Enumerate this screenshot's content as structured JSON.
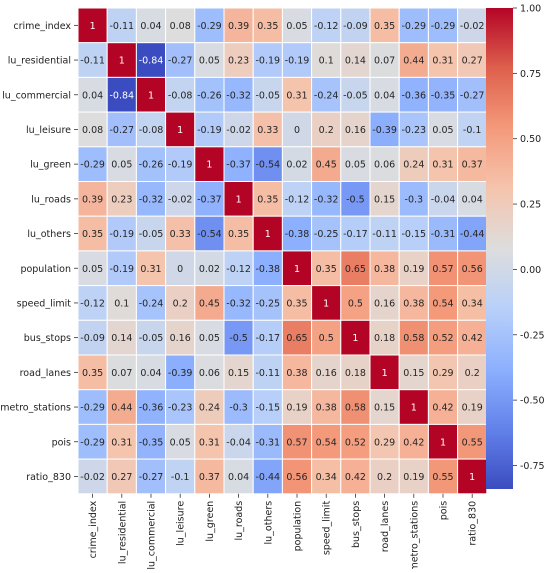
{
  "chart_data": {
    "type": "heatmap",
    "title": "",
    "xlabel": "",
    "ylabel": "",
    "labels": [
      "crime_index",
      "lu_residential",
      "lu_commercial",
      "lu_leisure",
      "lu_green",
      "lu_roads",
      "lu_others",
      "population",
      "speed_limit",
      "bus_stops",
      "road_lanes",
      "metro_stations",
      "pois",
      "ratio_830"
    ],
    "matrix": [
      [
        1,
        -0.11,
        0.04,
        0.08,
        -0.29,
        0.39,
        0.35,
        0.05,
        -0.12,
        -0.09,
        0.35,
        -0.29,
        -0.29,
        -0.02
      ],
      [
        -0.11,
        1,
        -0.84,
        -0.27,
        0.05,
        0.23,
        -0.19,
        -0.19,
        0.1,
        0.14,
        0.07,
        0.44,
        0.31,
        0.27
      ],
      [
        0.04,
        -0.84,
        1,
        -0.08,
        -0.26,
        -0.32,
        -0.05,
        0.31,
        -0.24,
        -0.05,
        0.04,
        -0.36,
        -0.35,
        -0.27
      ],
      [
        0.08,
        -0.27,
        -0.08,
        1,
        -0.19,
        -0.02,
        0.33,
        0,
        0.2,
        0.16,
        -0.39,
        -0.23,
        0.05,
        -0.1
      ],
      [
        -0.29,
        0.05,
        -0.26,
        -0.19,
        1,
        -0.37,
        -0.54,
        0.02,
        0.45,
        0.05,
        0.06,
        0.24,
        0.31,
        0.37
      ],
      [
        0.39,
        0.23,
        -0.32,
        -0.02,
        -0.37,
        1,
        0.35,
        -0.12,
        -0.32,
        -0.5,
        0.15,
        -0.3,
        -0.04,
        0.04
      ],
      [
        0.35,
        -0.19,
        -0.05,
        0.33,
        -0.54,
        0.35,
        1,
        -0.38,
        -0.25,
        -0.17,
        -0.11,
        -0.15,
        -0.31,
        -0.44
      ],
      [
        0.05,
        -0.19,
        0.31,
        0,
        0.02,
        -0.12,
        -0.38,
        1,
        0.35,
        0.65,
        0.38,
        0.19,
        0.57,
        0.56
      ],
      [
        -0.12,
        0.1,
        -0.24,
        0.2,
        0.45,
        -0.32,
        -0.25,
        0.35,
        1,
        0.5,
        0.16,
        0.38,
        0.54,
        0.34
      ],
      [
        -0.09,
        0.14,
        -0.05,
        0.16,
        0.05,
        -0.5,
        -0.17,
        0.65,
        0.5,
        1,
        0.18,
        0.58,
        0.52,
        0.42
      ],
      [
        0.35,
        0.07,
        0.04,
        -0.39,
        0.06,
        0.15,
        -0.11,
        0.38,
        0.16,
        0.18,
        1,
        0.15,
        0.29,
        0.2
      ],
      [
        -0.29,
        0.44,
        -0.36,
        -0.23,
        0.24,
        -0.3,
        -0.15,
        0.19,
        0.38,
        0.58,
        0.15,
        1,
        0.42,
        0.19
      ],
      [
        -0.29,
        0.31,
        -0.35,
        0.05,
        0.31,
        -0.04,
        -0.31,
        0.57,
        0.54,
        0.52,
        0.29,
        0.42,
        1,
        0.55
      ],
      [
        -0.02,
        0.27,
        -0.27,
        -0.1,
        0.37,
        0.04,
        -0.44,
        0.56,
        0.34,
        0.42,
        0.2,
        0.19,
        0.55,
        1
      ]
    ],
    "colormap": "coolwarm",
    "vmin": -0.84,
    "vmax": 1,
    "colorbar_ticks": [
      "1.00",
      "0.75",
      "0.50",
      "0.25",
      "0.00",
      "-0.25",
      "-0.50",
      "-0.75"
    ],
    "colorbar_tick_values": [
      1,
      0.75,
      0.5,
      0.25,
      0,
      -0.25,
      -0.5,
      -0.75
    ],
    "annotations": true,
    "grid": false,
    "cell_border_color": "#ffffff"
  }
}
